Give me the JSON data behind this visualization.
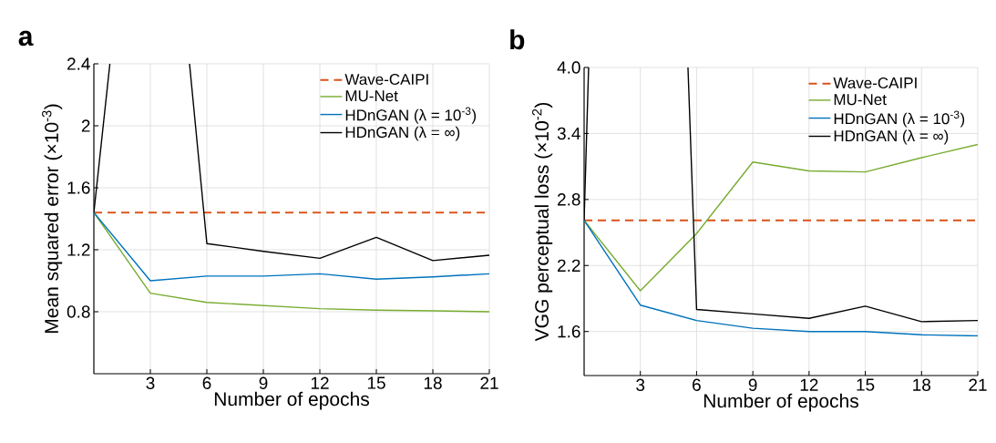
{
  "chart_data": [
    {
      "type": "line",
      "title": "a",
      "xlabel": "Number of epochs",
      "ylabel": "Mean squared error (×10$^{-3}$)",
      "x": [
        0,
        3,
        6,
        9,
        12,
        15,
        18,
        21
      ],
      "series": [
        {
          "name": "MU-Net",
          "color": "#77ac30",
          "values": [
            1.44,
            0.92,
            0.86,
            0.84,
            0.82,
            0.81,
            0.806,
            0.8
          ]
        },
        {
          "name": "HDnGAN (λ = 10$^{-3}$)",
          "color": "#0072bd",
          "values": [
            1.44,
            1.0,
            1.03,
            1.03,
            1.045,
            1.01,
            1.025,
            1.045
          ]
        },
        {
          "name": "HDnGAN (λ = ∞)",
          "color": "#000000",
          "x": [
            0,
            0.85,
            3,
            5.08,
            6,
            9,
            12,
            15,
            18,
            21
          ],
          "values": [
            1.44,
            2.4,
            null,
            2.4,
            1.24,
            1.19,
            1.145,
            1.28,
            1.13,
            1.165
          ]
        }
      ],
      "ref_lines": [
        {
          "axis": "y",
          "value": 1.44,
          "label": "Wave-CAIPI",
          "color": "#d95319",
          "line_style": "dashed"
        }
      ],
      "xlim": [
        0,
        21
      ],
      "xticks": [
        3,
        6,
        9,
        12,
        15,
        18,
        21
      ],
      "ylim": [
        0.4,
        2.4
      ],
      "yticks": [
        0.8,
        1.2,
        1.6,
        2,
        2.4
      ],
      "grid": true,
      "legend": "top right"
    },
    {
      "type": "line",
      "title": "b",
      "xlabel": "Number of epochs",
      "ylabel": "VGG perceptual loss (×10$^{-2}$)",
      "x": [
        0,
        3,
        6,
        9,
        12,
        15,
        18,
        21
      ],
      "series": [
        {
          "name": "MU-Net",
          "color": "#77ac30",
          "values": [
            2.61,
            1.97,
            2.49,
            3.14,
            3.06,
            3.05,
            3.18,
            3.3
          ]
        },
        {
          "name": "HDnGAN (λ = 10$^{-3}$)",
          "color": "#0072bd",
          "values": [
            2.61,
            1.84,
            1.7,
            1.63,
            1.6,
            1.6,
            1.57,
            1.56
          ]
        },
        {
          "name": "HDnGAN (λ = ∞)",
          "color": "#000000",
          "x": [
            0,
            0.24,
            3,
            5.54,
            6,
            9,
            12,
            15,
            18,
            21
          ],
          "values": [
            2.61,
            4.0,
            null,
            4.0,
            1.8,
            1.76,
            1.72,
            1.83,
            1.69,
            1.7
          ]
        }
      ],
      "ref_lines": [
        {
          "axis": "y",
          "value": 2.61,
          "label": "Wave-CAIPI",
          "color": "#d95319",
          "line_style": "dashed"
        }
      ],
      "xlim": [
        0,
        21
      ],
      "xticks": [
        3,
        6,
        9,
        12,
        15,
        18,
        21
      ],
      "ylim": [
        1.2,
        4.0
      ],
      "yticks": [
        1.6,
        2.2,
        2.8,
        3.4,
        {
          "value": 4.0,
          "label": "4.0"
        }
      ],
      "grid": true,
      "legend": "top right"
    }
  ]
}
